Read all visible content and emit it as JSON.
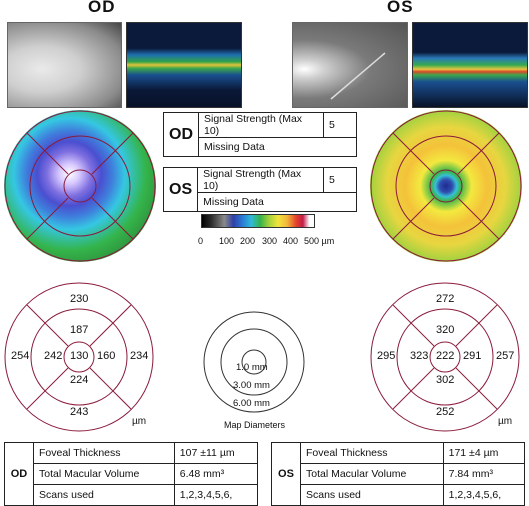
{
  "eyes": {
    "od_title": "OD",
    "os_title": "OS"
  },
  "signal": {
    "od": {
      "eye": "OD",
      "label": "Signal Strength (Max 10)",
      "value": "5",
      "missing_label": "Missing Data"
    },
    "os": {
      "eye": "OS",
      "label": "Signal Strength (Max 10)",
      "value": "5",
      "missing_label": "Missing Data"
    }
  },
  "colorbar": {
    "ticks": [
      "0",
      "100",
      "200",
      "300",
      "400",
      "500 µm"
    ]
  },
  "diagrams": {
    "od": {
      "top": "230",
      "left": "254",
      "right": "234",
      "bottom": "243",
      "inner_top": "187",
      "inner_left": "242",
      "center": "130",
      "inner_right": "160",
      "inner_bottom": "224",
      "unit": "µm"
    },
    "os": {
      "top": "272",
      "left": "295",
      "right": "257",
      "bottom": "252",
      "inner_top": "320",
      "inner_left": "323",
      "center": "222",
      "inner_right": "291",
      "inner_bottom": "302",
      "unit": "µm"
    }
  },
  "map_diameters": {
    "d1": "1.0 mm",
    "d3": "3.00 mm",
    "d6": "6.00 mm",
    "label": "Map Diameters"
  },
  "tables": {
    "od": {
      "eye": "OD",
      "foveal_label": "Foveal Thickness",
      "foveal_value": "107 ±11 µm",
      "volume_label": "Total Macular Volume",
      "volume_value": "6.48 mm³",
      "scans_label": "Scans used",
      "scans_value": "1,2,3,4,5,6,"
    },
    "os": {
      "eye": "OS",
      "foveal_label": "Foveal Thickness",
      "foveal_value": "171 ±4 µm",
      "volume_label": "Total Macular Volume",
      "volume_value": "7.84 mm³",
      "scans_label": "Scans used",
      "scans_value": "1,2,3,4,5,6,"
    }
  }
}
